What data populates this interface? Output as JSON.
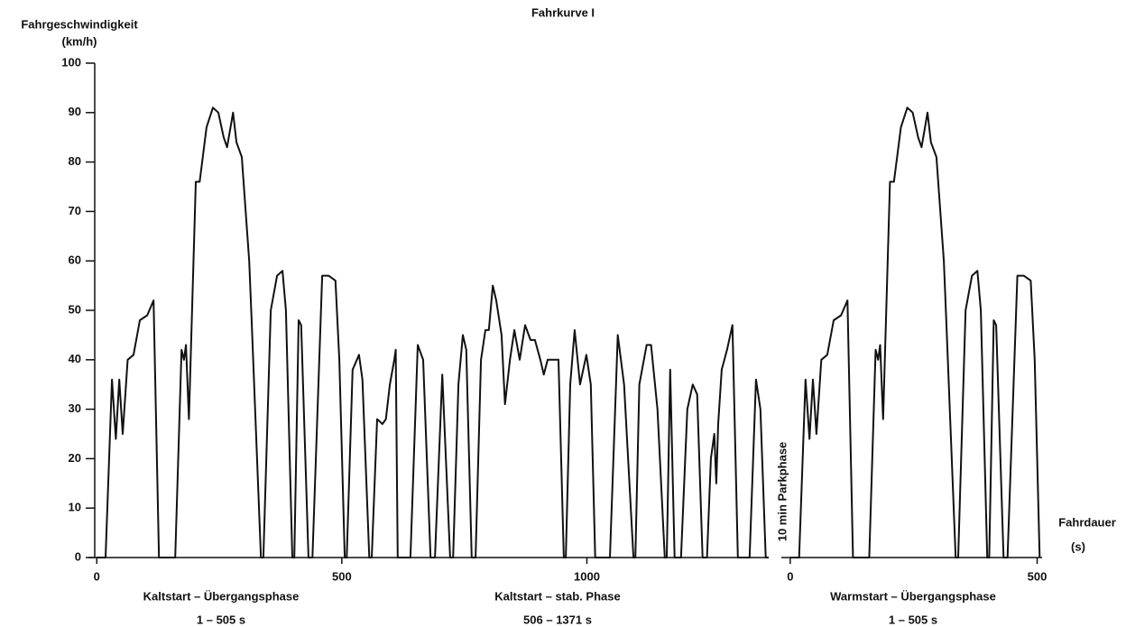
{
  "chart_data": [
    {
      "type": "line",
      "title": "Fahrkurve I",
      "y_label": "Fahrgeschwindigkeit",
      "y_unit": "(km/h)",
      "x": [
        0,
        18,
        31,
        39,
        46,
        53,
        63,
        75,
        88,
        103,
        116,
        127,
        160,
        173,
        178,
        182,
        188,
        202,
        210,
        224,
        237,
        248,
        259,
        266,
        278,
        285,
        296,
        311,
        316,
        335,
        340,
        355,
        368,
        379,
        386,
        399,
        403,
        412,
        417,
        432,
        440,
        460,
        473,
        487,
        495,
        506,
        510,
        522,
        535,
        542,
        556,
        561,
        572,
        583,
        590,
        598,
        607,
        610,
        614,
        640,
        655,
        666,
        681,
        690,
        705,
        721,
        727,
        738,
        747,
        754,
        765,
        773,
        784,
        793,
        800,
        808,
        815,
        826,
        833,
        843,
        852,
        863,
        874,
        885,
        894,
        905,
        912,
        920,
        936,
        942,
        953,
        957,
        966,
        975,
        986,
        999,
        1008,
        1017,
        1047,
        1063,
        1076,
        1095,
        1099,
        1107,
        1122,
        1131,
        1144,
        1159,
        1163,
        1170,
        1179,
        1192,
        1205,
        1216,
        1225,
        1236,
        1245,
        1253,
        1260,
        1264,
        1268,
        1275,
        1286,
        1297,
        1308,
        1332,
        1345,
        1354,
        1365,
        1371
      ],
      "values": [
        0,
        0,
        36,
        24,
        36,
        25,
        40,
        41,
        48,
        49,
        52,
        0,
        0,
        42,
        40,
        43,
        28,
        76,
        76,
        87,
        91,
        90,
        85,
        83,
        90,
        84,
        81,
        60,
        48,
        0,
        0,
        50,
        57,
        58,
        50,
        0,
        0,
        48,
        47,
        0,
        0,
        57,
        57,
        56,
        40,
        0,
        0,
        38,
        41,
        36,
        0,
        0,
        28,
        27,
        28,
        35,
        40,
        42,
        0,
        0,
        43,
        40,
        0,
        0,
        37,
        0,
        0,
        35,
        45,
        42,
        0,
        0,
        40,
        46,
        46,
        55,
        52,
        45,
        31,
        40,
        46,
        40,
        47,
        44,
        44,
        40,
        37,
        40,
        40,
        40,
        0,
        0,
        35,
        46,
        35,
        41,
        35,
        0,
        0,
        45,
        35,
        0,
        0,
        35,
        43,
        43,
        30,
        0,
        0,
        38,
        0,
        0,
        30,
        35,
        33,
        0,
        0,
        20,
        25,
        15,
        27,
        38,
        42,
        47,
        0,
        0,
        36,
        30,
        0,
        0
      ],
      "color": "#111111",
      "xlim": [
        -17,
        1371
      ],
      "xticks": [
        0,
        500,
        1000
      ],
      "ylim": [
        0,
        100
      ],
      "yticks": [
        0,
        10,
        20,
        30,
        40,
        50,
        60,
        70,
        80,
        90,
        100
      ],
      "phases": [
        {
          "name": "Kaltstart – Übergangsphase",
          "range": "1 – 505 s"
        },
        {
          "name": "Kaltstart – stab. Phase",
          "range": "506 – 1371 s"
        }
      ]
    },
    {
      "type": "line",
      "annotation": "10 min Parkphase",
      "x_label": "Fahrdauer",
      "x_unit": "(s)",
      "x": [
        0,
        18,
        31,
        39,
        46,
        53,
        63,
        75,
        88,
        103,
        116,
        127,
        160,
        173,
        178,
        182,
        188,
        202,
        210,
        224,
        237,
        248,
        259,
        266,
        278,
        285,
        296,
        311,
        316,
        335,
        340,
        355,
        368,
        379,
        386,
        399,
        403,
        412,
        417,
        432,
        440,
        460,
        473,
        487,
        495,
        505
      ],
      "values": [
        0,
        0,
        36,
        24,
        36,
        25,
        40,
        41,
        48,
        49,
        52,
        0,
        0,
        42,
        40,
        43,
        28,
        76,
        76,
        87,
        91,
        90,
        85,
        83,
        90,
        84,
        81,
        60,
        48,
        0,
        0,
        50,
        57,
        58,
        50,
        0,
        0,
        48,
        47,
        0,
        0,
        57,
        57,
        56,
        40,
        0
      ],
      "color": "#111111",
      "xlim": [
        -18,
        510
      ],
      "xticks": [
        0,
        500
      ],
      "ylim": [
        0,
        100
      ],
      "phases": [
        {
          "name": "Warmstart – Übergangsphase",
          "range": "1 – 505 s"
        }
      ]
    }
  ]
}
